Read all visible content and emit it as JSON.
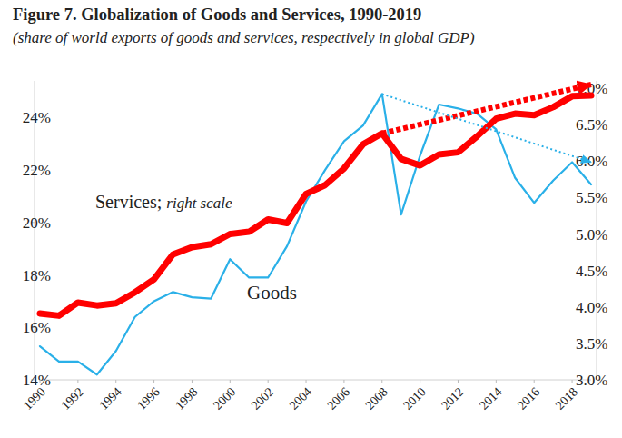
{
  "chart_data": {
    "type": "line",
    "title": "Figure 7. Globalization of Goods and Services, 1990-2019",
    "subtitle": "(share of world exports of goods and services, respectively in global GDP)",
    "x": [
      1990,
      1991,
      1992,
      1993,
      1994,
      1995,
      1996,
      1997,
      1998,
      1999,
      2000,
      2001,
      2002,
      2003,
      2004,
      2005,
      2006,
      2007,
      2008,
      2009,
      2010,
      2011,
      2012,
      2013,
      2014,
      2015,
      2016,
      2017,
      2018,
      2019
    ],
    "xlim": [
      1990,
      2019
    ],
    "xticks": [
      1990,
      1992,
      1994,
      1996,
      1998,
      2000,
      2002,
      2004,
      2006,
      2008,
      2010,
      2012,
      2014,
      2016,
      2018
    ],
    "ylim": [
      14,
      25.4
    ],
    "yticks": [
      {
        "value": 14,
        "label": "14%"
      },
      {
        "value": 16,
        "label": "16%"
      },
      {
        "value": 18,
        "label": "18%"
      },
      {
        "value": 20,
        "label": "20%"
      },
      {
        "value": 22,
        "label": "22%"
      },
      {
        "value": 24,
        "label": "24%"
      }
    ],
    "y2lim": [
      3,
      7.1
    ],
    "y2ticks": [
      {
        "value": 3,
        "label": "3.0%"
      },
      {
        "value": 3.5,
        "label": "3.5%"
      },
      {
        "value": 4,
        "label": "4.0%"
      },
      {
        "value": 4.5,
        "label": "4.5%"
      },
      {
        "value": 5,
        "label": "5.0%"
      },
      {
        "value": 5.5,
        "label": "5.5%"
      },
      {
        "value": 6,
        "label": "6.0%"
      },
      {
        "value": 6.5,
        "label": "6.5%"
      },
      {
        "value": 7,
        "label": "7.0%"
      }
    ],
    "grid": false,
    "series": [
      {
        "name": "Goods",
        "color": "#2ab0e8",
        "values": [
          15.28,
          14.7,
          14.7,
          14.2,
          15.1,
          16.4,
          17.0,
          17.35,
          17.15,
          17.1,
          18.6,
          17.9,
          17.9,
          19.1,
          20.8,
          22.0,
          23.1,
          23.7,
          24.9,
          20.3,
          22.55,
          24.5,
          24.35,
          24.15,
          23.55,
          21.7,
          20.75,
          21.6,
          22.3,
          21.45
        ]
      },
      {
        "name": "Services; right scale",
        "color": "#ff0000",
        "axis": "y2",
        "values": [
          3.91,
          3.88,
          4.06,
          4.02,
          4.05,
          4.2,
          4.38,
          4.72,
          4.82,
          4.86,
          5.0,
          5.03,
          5.2,
          5.15,
          5.55,
          5.67,
          5.9,
          6.23,
          6.38,
          6.03,
          5.94,
          6.09,
          6.12,
          6.34,
          6.58,
          6.65,
          6.63,
          6.74,
          6.89,
          6.9
        ]
      }
    ],
    "trends": [
      {
        "x": [
          2008,
          2019
        ],
        "values": [
          6.38,
          7.05
        ],
        "axis": "y2",
        "color": "#ff0000",
        "line_style": "dotted"
      },
      {
        "x": [
          2008,
          2019
        ],
        "values": [
          24.9,
          22.3
        ],
        "color": "#2ab0e8",
        "line_style": "dotted"
      }
    ]
  }
}
